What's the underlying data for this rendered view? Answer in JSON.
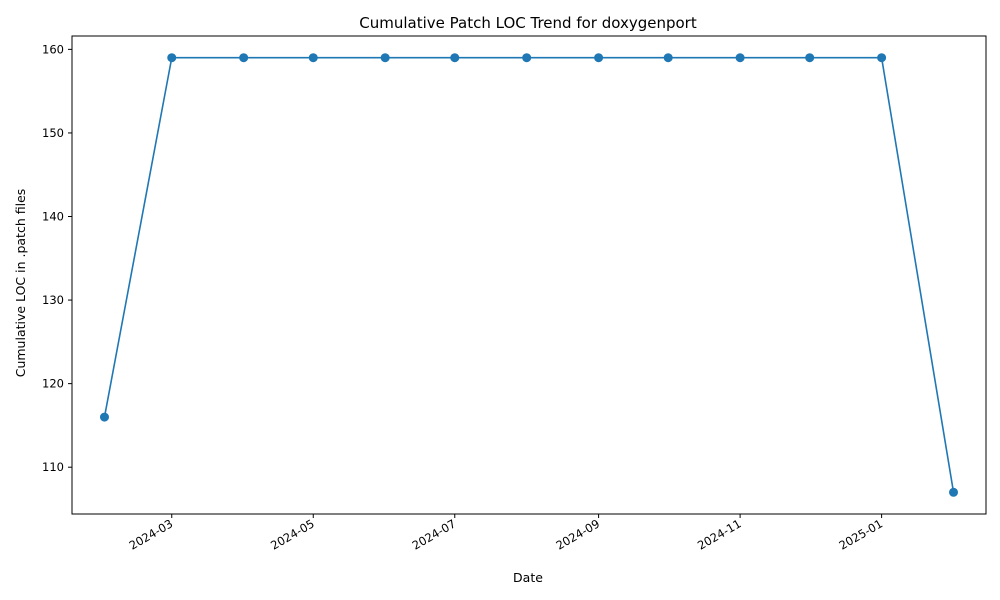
{
  "chart_data": {
    "type": "line",
    "title": "Cumulative Patch LOC Trend for doxygenport",
    "xlabel": "Date",
    "ylabel": "Cumulative LOC in .patch files",
    "x": [
      "2024-02-01",
      "2024-03-01",
      "2024-04-01",
      "2024-05-01",
      "2024-06-01",
      "2024-07-01",
      "2024-08-01",
      "2024-09-01",
      "2024-10-01",
      "2024-11-01",
      "2024-12-01",
      "2025-01-01",
      "2025-02-01"
    ],
    "series": [
      {
        "values": [
          116,
          159,
          159,
          159,
          159,
          159,
          159,
          159,
          159,
          159,
          159,
          159,
          107
        ],
        "color": "#1f77b4"
      }
    ],
    "xlim": [
      "2024-01-18",
      "2025-02-15"
    ],
    "ylim": [
      104.4,
      161.6
    ],
    "xticks": [
      "2024-03",
      "2024-05",
      "2024-07",
      "2024-09",
      "2024-11",
      "2025-01"
    ],
    "xtick_dates": [
      "2024-03-01",
      "2024-05-01",
      "2024-07-01",
      "2024-09-01",
      "2024-11-01",
      "2025-01-01"
    ],
    "yticks": [
      110,
      120,
      130,
      140,
      150,
      160
    ],
    "grid": false,
    "marker": "circle"
  }
}
